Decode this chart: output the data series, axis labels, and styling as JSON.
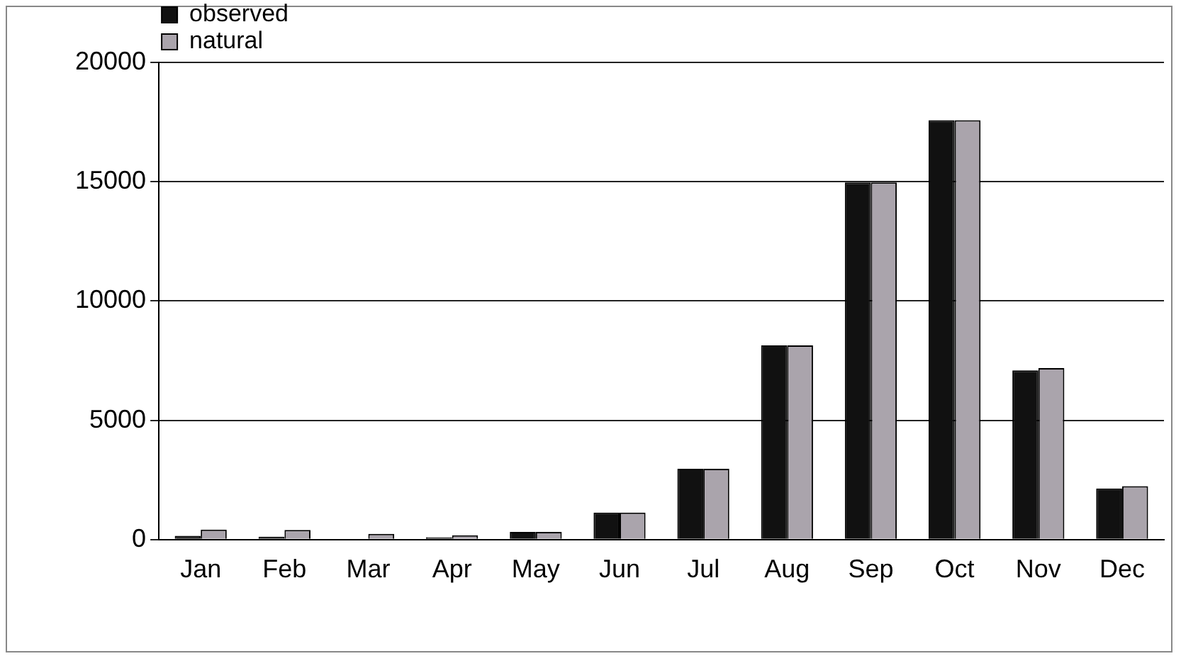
{
  "chart_data": {
    "type": "bar",
    "categories": [
      "Jan",
      "Feb",
      "Mar",
      "Apr",
      "May",
      "Jun",
      "Jul",
      "Aug",
      "Sep",
      "Oct",
      "Nov",
      "Dec"
    ],
    "series": [
      {
        "name": "observed",
        "color": "#111111",
        "values": [
          160,
          120,
          0,
          100,
          320,
          1130,
          2970,
          8140,
          14970,
          17580,
          7090,
          2140
        ]
      },
      {
        "name": "natural",
        "color": "#aaa4ac",
        "values": [
          420,
          400,
          240,
          180,
          320,
          1130,
          2970,
          8140,
          14970,
          17580,
          7190,
          2240
        ]
      }
    ],
    "ylim": [
      0,
      20000
    ],
    "yticks": [
      0,
      5000,
      10000,
      15000,
      20000
    ],
    "grid": "y",
    "legend": "top left"
  }
}
